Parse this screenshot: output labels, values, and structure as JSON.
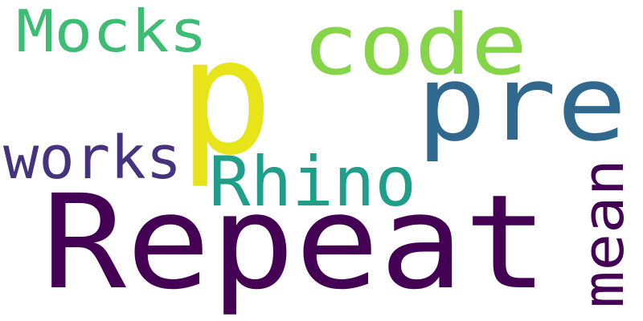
{
  "words": [
    {
      "id": "repeat",
      "text": "Repeat",
      "color": "#440154",
      "orientation": "horizontal"
    },
    {
      "id": "p",
      "text": "p",
      "color": "#e7e419",
      "orientation": "horizontal"
    },
    {
      "id": "pre",
      "text": "pre",
      "color": "#31688e",
      "orientation": "horizontal"
    },
    {
      "id": "code",
      "text": "code",
      "color": "#86d549",
      "orientation": "horizontal"
    },
    {
      "id": "mocks",
      "text": "Mocks",
      "color": "#3dbc74",
      "orientation": "horizontal"
    },
    {
      "id": "rhino",
      "text": "Rhino",
      "color": "#1f9e89",
      "orientation": "horizontal"
    },
    {
      "id": "works",
      "text": "works",
      "color": "#46337e",
      "orientation": "horizontal"
    },
    {
      "id": "mean",
      "text": "mean",
      "color": "#440154",
      "orientation": "vertical"
    }
  ]
}
